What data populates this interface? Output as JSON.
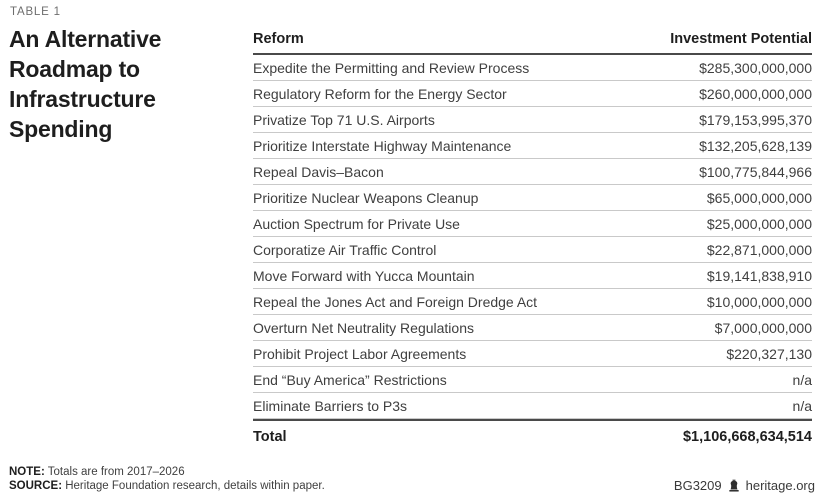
{
  "table_label": "TABLE 1",
  "title": "An Alternative Roadmap to Infrastructure Spending",
  "table": {
    "columns": [
      "Reform",
      "Investment Potential"
    ],
    "rows": [
      {
        "reform": "Expedite the Permitting and Review Process",
        "amount": "$285,300,000,000"
      },
      {
        "reform": "Regulatory Reform for the Energy Sector",
        "amount": "$260,000,000,000"
      },
      {
        "reform": "Privatize Top 71 U.S. Airports",
        "amount": "$179,153,995,370"
      },
      {
        "reform": "Prioritize Interstate Highway Maintenance",
        "amount": "$132,205,628,139"
      },
      {
        "reform": "Repeal Davis–Bacon",
        "amount": "$100,775,844,966"
      },
      {
        "reform": "Prioritize Nuclear Weapons Cleanup",
        "amount": "$65,000,000,000"
      },
      {
        "reform": "Auction Spectrum for Private Use",
        "amount": "$25,000,000,000"
      },
      {
        "reform": "Corporatize Air Traffic Control",
        "amount": "$22,871,000,000"
      },
      {
        "reform": "Move Forward with Yucca Mountain",
        "amount": "$19,141,838,910"
      },
      {
        "reform": "Repeal the Jones Act and Foreign Dredge Act",
        "amount": "$10,000,000,000"
      },
      {
        "reform": "Overturn Net Neutrality Regulations",
        "amount": "$7,000,000,000"
      },
      {
        "reform": "Prohibit Project Labor Agreements",
        "amount": "$220,327,130"
      },
      {
        "reform": "End “Buy America” Restrictions",
        "amount": "n/a"
      },
      {
        "reform": "Eliminate Barriers to P3s",
        "amount": "n/a"
      }
    ],
    "total": {
      "label": "Total",
      "amount": "$1,106,668,634,514"
    }
  },
  "footnotes": {
    "note_label": "NOTE:",
    "note_text": "Totals are from 2017–2026",
    "source_label": "SOURCE:",
    "source_text": "Heritage Foundation research, details within paper."
  },
  "footer_right": {
    "doc_id": "BG3209",
    "site": "heritage.org",
    "icon": "liberty-bell-icon"
  },
  "colors": {
    "title_text": "#1e1e1e",
    "label_gray": "#6d6d6d",
    "body_text": "#3f3f3f",
    "rule_dark": "#4a4a4a",
    "rule_light": "#c9c9c9",
    "background": "#ffffff"
  }
}
